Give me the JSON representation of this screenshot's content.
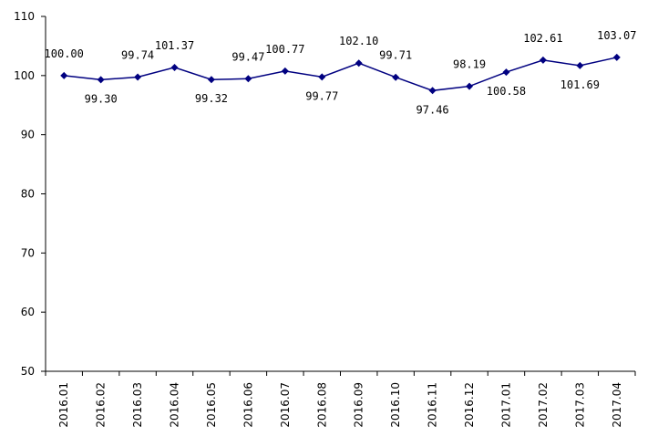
{
  "chart_data": {
    "type": "line",
    "title": "",
    "xlabel": "",
    "ylabel": "",
    "ylim": [
      50,
      110
    ],
    "yticks": [
      50,
      60,
      70,
      80,
      90,
      100,
      110
    ],
    "categories": [
      "2016.01",
      "2016.02",
      "2016.03",
      "2016.04",
      "2016.05",
      "2016.06",
      "2016.07",
      "2016.08",
      "2016.09",
      "2016.10",
      "2016.11",
      "2016.12",
      "2017.01",
      "2017.02",
      "2017.03",
      "2017.04"
    ],
    "series": [
      {
        "values": [
          100.0,
          99.3,
          99.74,
          101.37,
          99.32,
          99.47,
          100.77,
          99.77,
          102.1,
          99.71,
          97.46,
          98.19,
          100.58,
          102.61,
          101.69,
          103.07
        ],
        "labels": [
          "100.00",
          "99.30",
          "99.74",
          "101.37",
          "99.32",
          "99.47",
          "100.77",
          "99.77",
          "102.10",
          "99.71",
          "97.46",
          "98.19",
          "100.58",
          "102.61",
          "101.69",
          "103.07"
        ],
        "label_positions": [
          "above",
          "below",
          "above",
          "above",
          "below",
          "above",
          "above",
          "below",
          "above",
          "above",
          "below",
          "above",
          "below",
          "above",
          "below",
          "above"
        ],
        "color": "#000080",
        "marker": "diamond"
      }
    ],
    "grid": false,
    "legend": "none"
  }
}
